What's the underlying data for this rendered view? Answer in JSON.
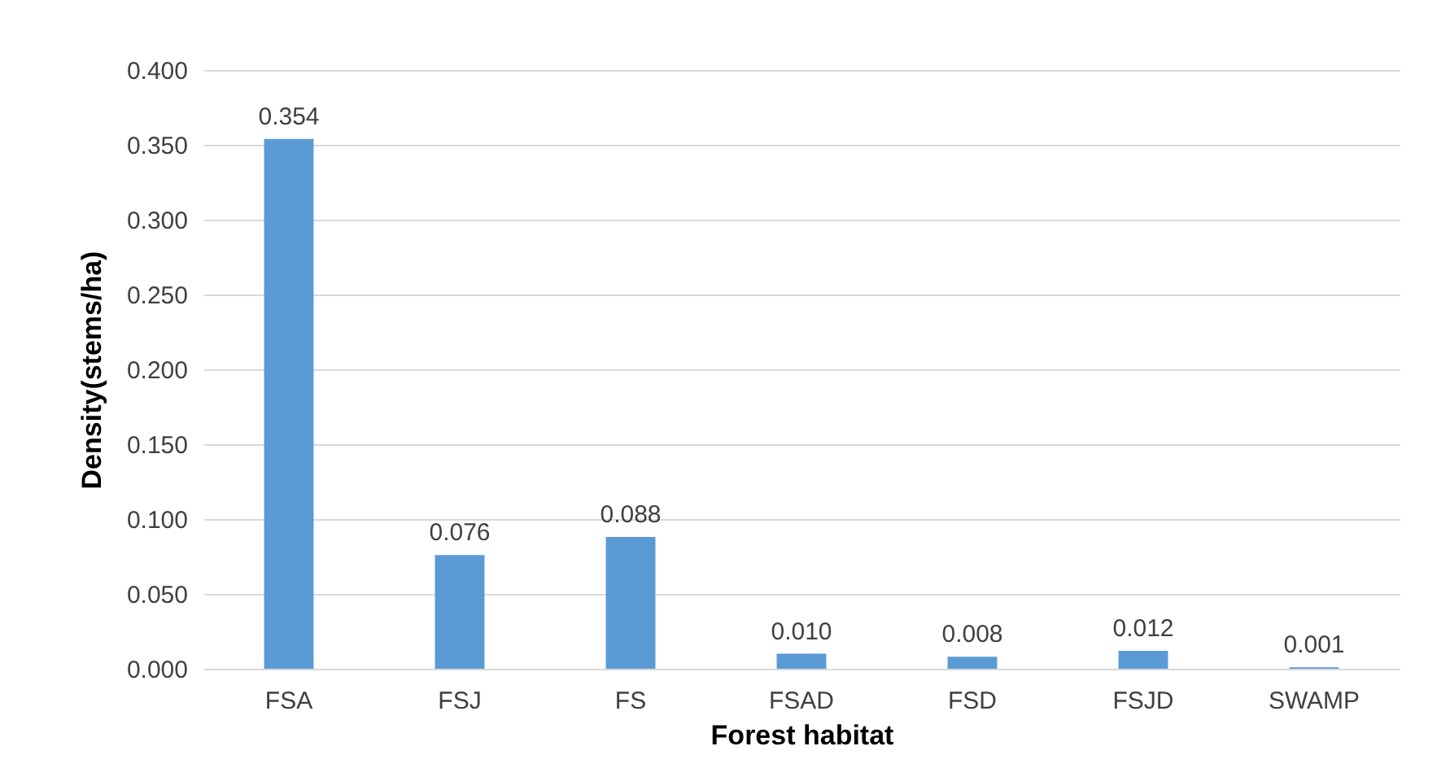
{
  "chart_data": {
    "type": "bar",
    "xlabel": "Forest habitat",
    "ylabel": "Density(stems/ha)",
    "categories": [
      "FSA",
      "FSJ",
      "FS",
      "FSAD",
      "FSD",
      "FSJD",
      "SWAMP"
    ],
    "values": [
      0.354,
      0.076,
      0.088,
      0.01,
      0.008,
      0.012,
      0.001
    ],
    "value_labels": [
      "0.354",
      "0.076",
      "0.088",
      "0.010",
      "0.008",
      "0.012",
      "0.001"
    ],
    "color": "#5b9bd5",
    "ylim": [
      0,
      0.4
    ],
    "yticks": [
      {
        "value": 0,
        "label": "0.000"
      },
      {
        "value": 0.05,
        "label": "0.050"
      },
      {
        "value": 0.1,
        "label": "0.100"
      },
      {
        "value": 0.15,
        "label": "0.150"
      },
      {
        "value": 0.2,
        "label": "0.200"
      },
      {
        "value": 0.25,
        "label": "0.250"
      },
      {
        "value": 0.3,
        "label": "0.300"
      },
      {
        "value": 0.35,
        "label": "0.350"
      },
      {
        "value": 0.4,
        "label": "0.400"
      }
    ],
    "grid": "y"
  }
}
